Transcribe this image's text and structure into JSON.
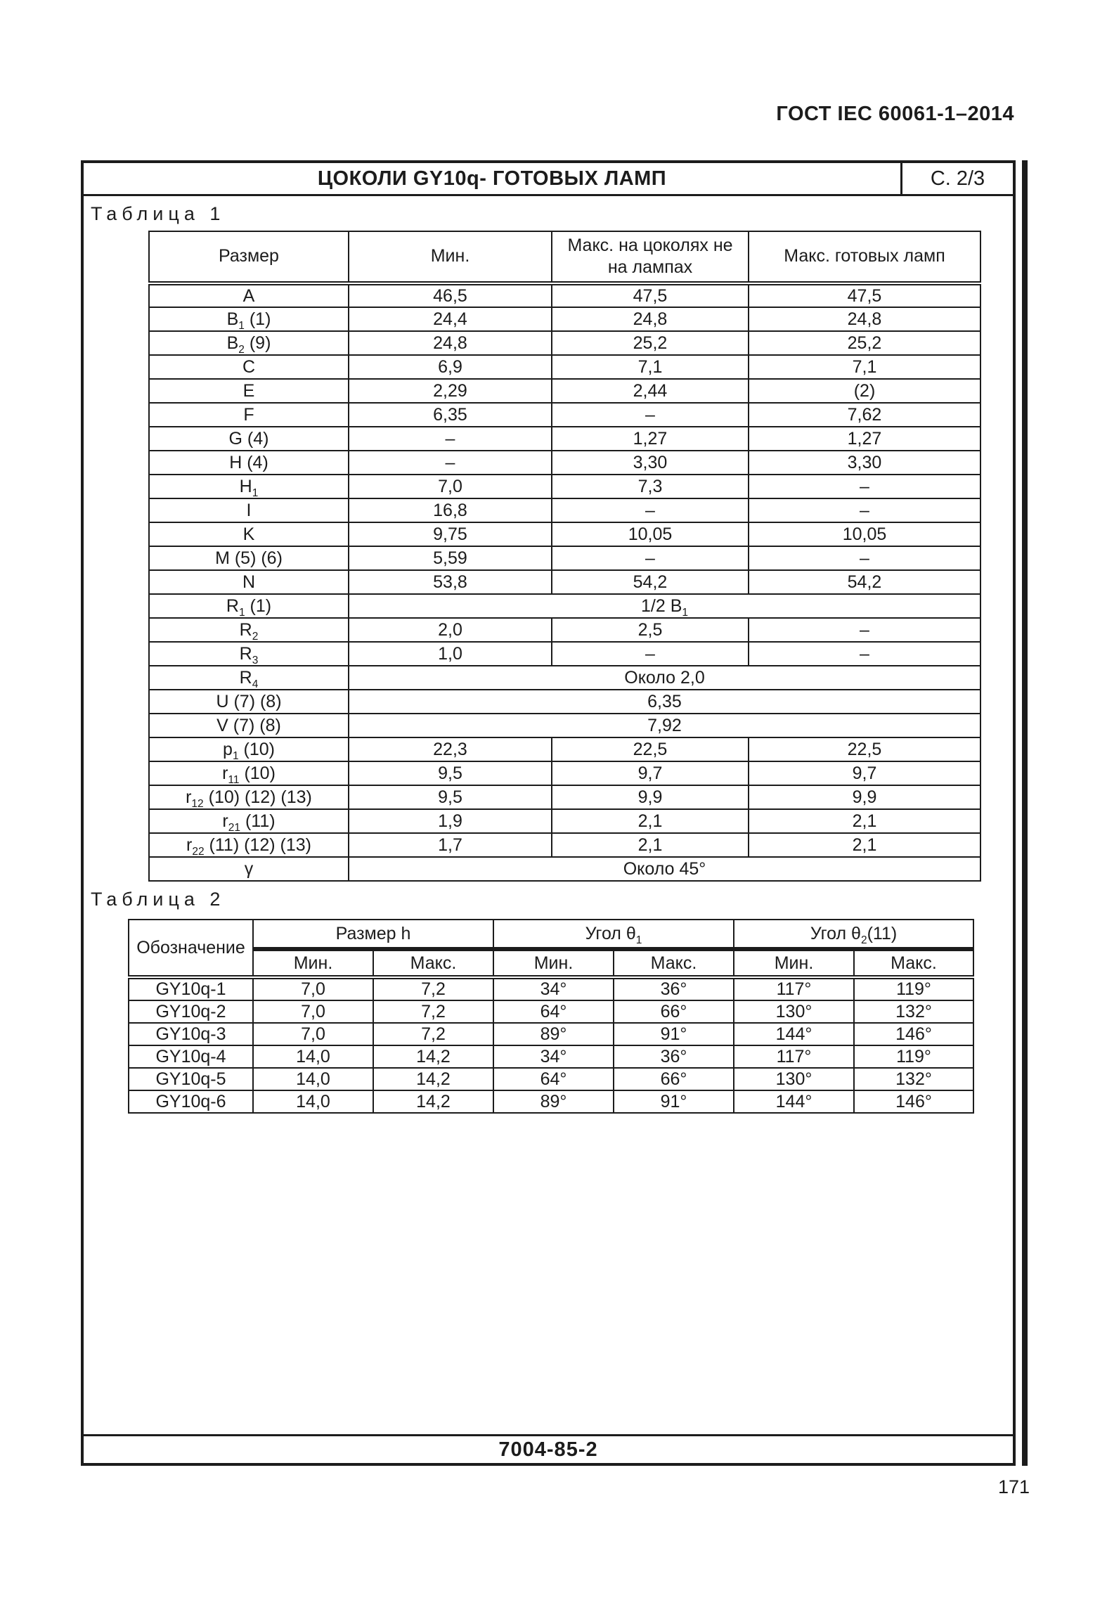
{
  "header": {
    "standard": "ГОСТ IEC 60061-1–2014",
    "title": "ЦОКОЛИ GY10q- ГОТОВЫХ ЛАМП",
    "sheet": "С. 2/3"
  },
  "table1": {
    "label": "Таблица 1",
    "columns": [
      "Размер",
      "Мин.",
      "Макс. на цоколях не на лампах",
      "Макс. готовых ламп"
    ],
    "rows": [
      {
        "size": "A",
        "min": "46,5",
        "max_cap": "47,5",
        "max_lamp": "47,5"
      },
      {
        "size": "B_{1} (1)",
        "min": "24,4",
        "max_cap": "24,8",
        "max_lamp": "24,8"
      },
      {
        "size": "B_{2} (9)",
        "min": "24,8",
        "max_cap": "25,2",
        "max_lamp": "25,2"
      },
      {
        "size": "C",
        "min": "6,9",
        "max_cap": "7,1",
        "max_lamp": "7,1"
      },
      {
        "size": "E",
        "min": "2,29",
        "max_cap": "2,44",
        "max_lamp": "(2)"
      },
      {
        "size": "F",
        "min": "6,35",
        "max_cap": "–",
        "max_lamp": "7,62"
      },
      {
        "size": "G (4)",
        "min": "–",
        "max_cap": "1,27",
        "max_lamp": "1,27"
      },
      {
        "size": "H (4)",
        "min": "–",
        "max_cap": "3,30",
        "max_lamp": "3,30"
      },
      {
        "size": "H_{1}",
        "min": "7,0",
        "max_cap": "7,3",
        "max_lamp": "–"
      },
      {
        "size": "I",
        "min": "16,8",
        "max_cap": "–",
        "max_lamp": "–"
      },
      {
        "size": "K",
        "min": "9,75",
        "max_cap": "10,05",
        "max_lamp": "10,05"
      },
      {
        "size": "M (5) (6)",
        "min": "5,59",
        "max_cap": "–",
        "max_lamp": "–"
      },
      {
        "size": "N",
        "min": "53,8",
        "max_cap": "54,2",
        "max_lamp": "54,2"
      },
      {
        "size": "R_{1} (1)",
        "span": "1/2 B_{1}"
      },
      {
        "size": "R_{2}",
        "min": "2,0",
        "max_cap": "2,5",
        "max_lamp": "–"
      },
      {
        "size": "R_{3}",
        "min": "1,0",
        "max_cap": "–",
        "max_lamp": "–"
      },
      {
        "size": "R_{4}",
        "span": "Около 2,0"
      },
      {
        "size": "U (7) (8)",
        "span": "6,35"
      },
      {
        "size": "V (7) (8)",
        "span": "7,92"
      },
      {
        "size": "p_{1} (10)",
        "min": "22,3",
        "max_cap": "22,5",
        "max_lamp": "22,5"
      },
      {
        "size": "r_{11} (10)",
        "min": "9,5",
        "max_cap": "9,7",
        "max_lamp": "9,7"
      },
      {
        "size": "r_{12} (10) (12) (13)",
        "min": "9,5",
        "max_cap": "9,9",
        "max_lamp": "9,9"
      },
      {
        "size": "r_{21} (11)",
        "min": "1,9",
        "max_cap": "2,1",
        "max_lamp": "2,1"
      },
      {
        "size": "r_{22} (11) (12) (13)",
        "min": "1,7",
        "max_cap": "2,1",
        "max_lamp": "2,1"
      },
      {
        "size": "γ",
        "span": "Около 45°"
      }
    ]
  },
  "table2": {
    "label": "Таблица 2",
    "designation_header": "Обозначение",
    "groups": [
      "Размер h",
      "Угол θ_{1}",
      "Угол θ_{2}(11)"
    ],
    "subheaders": [
      "Мин.",
      "Макс.",
      "Мин.",
      "Макс.",
      "Мин.",
      "Макс."
    ],
    "rows": [
      {
        "designation": "GY10q-1",
        "h_min": "7,0",
        "h_max": "7,2",
        "a1_min": "34°",
        "a1_max": "36°",
        "a2_min": "117°",
        "a2_max": "119°"
      },
      {
        "designation": "GY10q-2",
        "h_min": "7,0",
        "h_max": "7,2",
        "a1_min": "64°",
        "a1_max": "66°",
        "a2_min": "130°",
        "a2_max": "132°"
      },
      {
        "designation": "GY10q-3",
        "h_min": "7,0",
        "h_max": "7,2",
        "a1_min": "89°",
        "a1_max": "91°",
        "a2_min": "144°",
        "a2_max": "146°"
      },
      {
        "designation": "GY10q-4",
        "h_min": "14,0",
        "h_max": "14,2",
        "a1_min": "34°",
        "a1_max": "36°",
        "a2_min": "117°",
        "a2_max": "119°"
      },
      {
        "designation": "GY10q-5",
        "h_min": "14,0",
        "h_max": "14,2",
        "a1_min": "64°",
        "a1_max": "66°",
        "a2_min": "130°",
        "a2_max": "132°"
      },
      {
        "designation": "GY10q-6",
        "h_min": "14,0",
        "h_max": "14,2",
        "a1_min": "89°",
        "a1_max": "91°",
        "a2_min": "144°",
        "a2_max": "146°"
      }
    ]
  },
  "footer": {
    "code": "7004-85-2",
    "page_number": "171"
  },
  "colors": {
    "ink": "#1c1c1c",
    "paper": "#ffffff"
  }
}
